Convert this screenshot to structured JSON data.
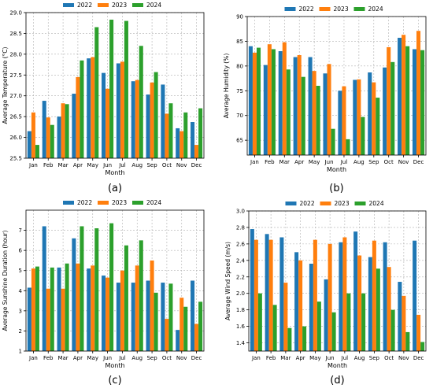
{
  "colors": {
    "2022": "#1f77b4",
    "2023": "#ff7f0e",
    "2024": "#2ca02c"
  },
  "chart_data": [
    {
      "type": "bar",
      "caption": "(a)",
      "xlabel": "Month",
      "ylabel": "Average Temperature (°C)",
      "ylim": [
        25.5,
        29.0
      ],
      "yticks": [
        25.5,
        26.0,
        26.5,
        27.0,
        27.5,
        28.0,
        28.5,
        29.0
      ],
      "ytick_labels": [
        "25.5",
        "26.0",
        "26.5",
        "27.0",
        "27.5",
        "28.0",
        "28.5",
        "29.0"
      ],
      "grid": true,
      "legend": "top-center",
      "categories": [
        "Jan",
        "Feb",
        "Mar",
        "Apr",
        "May",
        "Jun",
        "Jul",
        "Aug",
        "Sep",
        "Oct",
        "Nov",
        "Dec"
      ],
      "series": [
        {
          "name": "2022",
          "values": [
            26.15,
            26.88,
            26.5,
            27.05,
            27.9,
            27.55,
            27.78,
            27.35,
            27.03,
            27.27,
            26.22,
            26.37
          ]
        },
        {
          "name": "2023",
          "values": [
            26.6,
            26.48,
            26.82,
            27.45,
            27.93,
            27.17,
            27.82,
            27.38,
            27.32,
            26.57,
            26.15,
            25.82
          ]
        },
        {
          "name": "2024",
          "values": [
            25.82,
            26.3,
            26.8,
            27.85,
            28.65,
            28.83,
            28.8,
            28.2,
            27.57,
            26.82,
            26.6,
            26.7
          ]
        }
      ]
    },
    {
      "type": "bar",
      "caption": "(b)",
      "xlabel": "Month",
      "ylabel": "Average Humidity (%)",
      "ylim": [
        62,
        90
      ],
      "yticks": [
        65,
        70,
        75,
        80,
        85,
        90
      ],
      "ytick_labels": [
        "65",
        "70",
        "75",
        "80",
        "85",
        "90"
      ],
      "grid": true,
      "legend": "top-center",
      "categories": [
        "Jan",
        "Feb",
        "Mar",
        "Apr",
        "May",
        "Jun",
        "Jul",
        "Aug",
        "Sep",
        "Oct",
        "Nov",
        "Dec"
      ],
      "series": [
        {
          "name": "2022",
          "values": [
            84.0,
            80.2,
            83.0,
            81.8,
            81.8,
            78.5,
            75.0,
            77.2,
            78.7,
            79.7,
            85.7,
            83.4
          ]
        },
        {
          "name": "2023",
          "values": [
            82.7,
            84.4,
            84.8,
            82.2,
            79.0,
            80.4,
            75.9,
            77.3,
            76.7,
            83.8,
            86.3,
            87.1
          ]
        },
        {
          "name": "2024",
          "values": [
            83.7,
            83.4,
            79.3,
            77.8,
            76.0,
            67.3,
            65.2,
            69.7,
            73.6,
            80.8,
            84.0,
            83.2
          ]
        }
      ]
    },
    {
      "type": "bar",
      "caption": "(c)",
      "xlabel": "Month",
      "ylabel": "Average Sunshine Duration (hour)",
      "ylim": [
        1,
        8
      ],
      "yticks": [
        1,
        2,
        3,
        4,
        5,
        6,
        7
      ],
      "ytick_labels": [
        "1",
        "2",
        "3",
        "4",
        "5",
        "6",
        "7"
      ],
      "grid": true,
      "legend": "top-center",
      "categories": [
        "Jan",
        "Feb",
        "Mar",
        "Apr",
        "May",
        "Jun",
        "Jul",
        "Aug",
        "Sep",
        "Oct",
        "Nov",
        "Dec"
      ],
      "series": [
        {
          "name": "2022",
          "values": [
            4.15,
            7.2,
            5.15,
            6.6,
            5.1,
            4.75,
            4.4,
            4.4,
            4.5,
            4.4,
            2.05,
            4.5
          ]
        },
        {
          "name": "2023",
          "values": [
            5.1,
            4.1,
            4.1,
            5.35,
            5.25,
            4.65,
            5.0,
            5.25,
            5.5,
            2.6,
            3.65,
            2.35
          ]
        },
        {
          "name": "2024",
          "values": [
            5.2,
            5.15,
            5.35,
            7.2,
            7.1,
            7.35,
            6.25,
            6.5,
            3.9,
            4.35,
            3.2,
            3.45
          ]
        }
      ]
    },
    {
      "type": "bar",
      "caption": "(d)",
      "xlabel": "Month",
      "ylabel": "Average Wind Speed (m/s)",
      "ylim": [
        1.3,
        3.0
      ],
      "yticks": [
        1.4,
        1.6,
        1.8,
        2.0,
        2.2,
        2.4,
        2.6,
        2.8,
        3.0
      ],
      "ytick_labels": [
        "1.4",
        "1.6",
        "1.8",
        "2.0",
        "2.2",
        "2.4",
        "2.6",
        "2.8",
        "3.0"
      ],
      "grid": true,
      "legend": "top-center",
      "categories": [
        "Jan",
        "Feb",
        "Mar",
        "Apr",
        "May",
        "Jun",
        "Jul",
        "Aug",
        "Sep",
        "Oct",
        "Nov",
        "Dec"
      ],
      "series": [
        {
          "name": "2022",
          "values": [
            2.78,
            2.72,
            2.68,
            2.5,
            2.36,
            2.17,
            2.62,
            2.75,
            2.44,
            2.62,
            2.14,
            2.64
          ]
        },
        {
          "name": "2023",
          "values": [
            2.65,
            2.65,
            2.13,
            2.4,
            2.65,
            2.6,
            2.68,
            2.46,
            2.64,
            2.32,
            1.97,
            1.74
          ]
        },
        {
          "name": "2024",
          "values": [
            2.0,
            1.86,
            1.58,
            1.6,
            1.9,
            1.77,
            2.0,
            2.0,
            2.3,
            1.8,
            1.53,
            1.41
          ]
        }
      ]
    }
  ]
}
